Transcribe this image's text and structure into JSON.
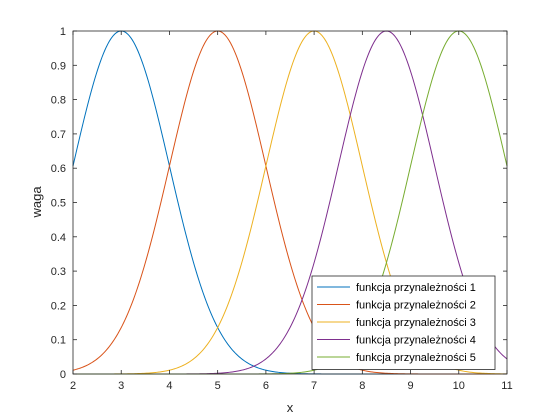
{
  "chart_data": {
    "type": "line",
    "title": "",
    "xlabel": "x",
    "ylabel": "waga",
    "xlim": [
      2,
      11
    ],
    "ylim": [
      0,
      1
    ],
    "xticks": [
      2,
      3,
      4,
      5,
      6,
      7,
      8,
      9,
      10,
      11
    ],
    "yticks": [
      0,
      0.1,
      0.2,
      0.3,
      0.4,
      0.5,
      0.6,
      0.7,
      0.8,
      0.9,
      1
    ],
    "ytick_labels": [
      "0",
      "0.1",
      "0.2",
      "0.3",
      "0.4",
      "0.5",
      "0.6",
      "0.7",
      "0.8",
      "0.9",
      "1"
    ],
    "grid": false,
    "legend_position": "bottom-right",
    "series": [
      {
        "name": "funkcja przynależności 1",
        "color": "#0072BD",
        "center": 3,
        "sigma": 1.0
      },
      {
        "name": "funkcja przynależności 2",
        "color": "#D95319",
        "center": 5,
        "sigma": 1.0
      },
      {
        "name": "funkcja przynależności 3",
        "color": "#EDB120",
        "center": 7,
        "sigma": 1.0
      },
      {
        "name": "funkcja przynależności 4",
        "color": "#7E2F8E",
        "center": 8.5,
        "sigma": 1.0
      },
      {
        "name": "funkcja przynależności 5",
        "color": "#77AC30",
        "center": 10,
        "sigma": 1.0
      }
    ]
  }
}
